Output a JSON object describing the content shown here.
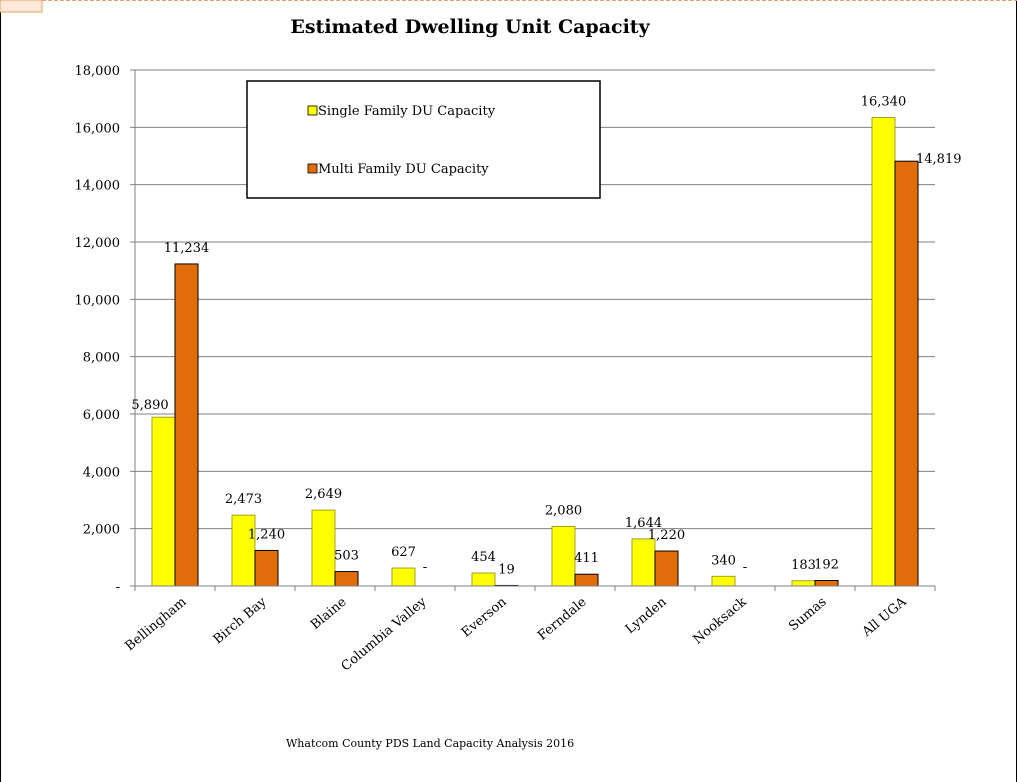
{
  "chart_data": {
    "type": "bar",
    "title": "Estimated Dwelling Unit Capacity",
    "categories": [
      "Bellingham",
      "Birch Bay",
      "Blaine",
      "Columbia Valley",
      "Everson",
      "Ferndale",
      "Lynden",
      "Nooksack",
      "Sumas",
      "All UGA"
    ],
    "series": [
      {
        "name": "Single Family DU Capacity",
        "color": "#ffff00",
        "values": [
          5890,
          2473,
          2649,
          627,
          454,
          2080,
          1644,
          340,
          183,
          16340
        ],
        "labels": [
          "5,890",
          "2,473",
          "2,649",
          "627",
          "454",
          "2,080",
          "1,644",
          "340",
          "183",
          "16,340"
        ]
      },
      {
        "name": "Multi Family DU Capacity",
        "color": "#e36c0a",
        "values": [
          11234,
          1240,
          503,
          0,
          19,
          411,
          1220,
          0,
          192,
          14819
        ],
        "labels": [
          "11,234",
          "1,240",
          "503",
          "-",
          "19",
          "411",
          "1,220",
          "-",
          "192",
          "14,819"
        ]
      }
    ],
    "ylim": [
      0,
      18000
    ],
    "yticks": [
      0,
      2000,
      4000,
      6000,
      8000,
      10000,
      12000,
      14000,
      16000,
      18000
    ],
    "ytick_labels": [
      "-",
      "2,000",
      "4,000",
      "6,000",
      "8,000",
      "10,000",
      "12,000",
      "14,000",
      "16,000",
      "18,000"
    ],
    "grid": true,
    "legend_position": "top-center",
    "xlabel": "",
    "ylabel": ""
  },
  "footer": {
    "source": "Whatcom County PDS Land Capacity Analysis 2016"
  }
}
